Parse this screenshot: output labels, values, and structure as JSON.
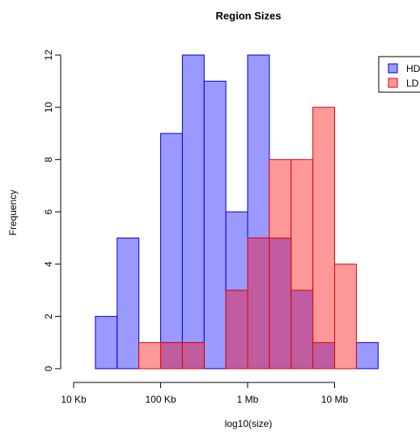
{
  "chart_data": {
    "type": "histogram",
    "title": "Region Sizes",
    "xlabel": "log10(size)",
    "ylabel": "Frequency",
    "x_tick_labels": [
      {
        "value": 4,
        "label": "10 Kb"
      },
      {
        "value": 5,
        "label": "100 Kb"
      },
      {
        "value": 6,
        "label": "1 Mb"
      },
      {
        "value": 7,
        "label": "10 Mb"
      }
    ],
    "y_ticks": [
      0,
      2,
      4,
      6,
      8,
      10,
      12
    ],
    "xlim": [
      4,
      8
    ],
    "ylim": [
      0,
      12
    ],
    "bin_width": 0.25,
    "bin_edges": [
      4.0,
      4.25,
      4.5,
      4.75,
      5.0,
      5.25,
      5.5,
      5.75,
      6.0,
      6.25,
      6.5,
      6.75,
      7.0,
      7.25,
      7.5,
      7.75,
      8.0
    ],
    "series": [
      {
        "name": "HD",
        "fill": "#9999ff",
        "stroke": "#0000cc",
        "values": [
          0,
          2,
          5,
          0,
          9,
          12,
          11,
          6,
          12,
          5,
          3,
          1,
          0,
          1,
          0,
          0
        ]
      },
      {
        "name": "LD",
        "fill": "#ff9999",
        "stroke": "#e00000",
        "values": [
          0,
          0,
          0,
          1,
          1,
          1,
          0,
          3,
          5,
          8,
          8,
          10,
          4,
          0,
          0,
          0
        ]
      }
    ],
    "overlap_fill": "#c05ca0",
    "legend": {
      "position": "top-right",
      "entries": [
        "HD",
        "LD"
      ]
    },
    "grid": false
  }
}
